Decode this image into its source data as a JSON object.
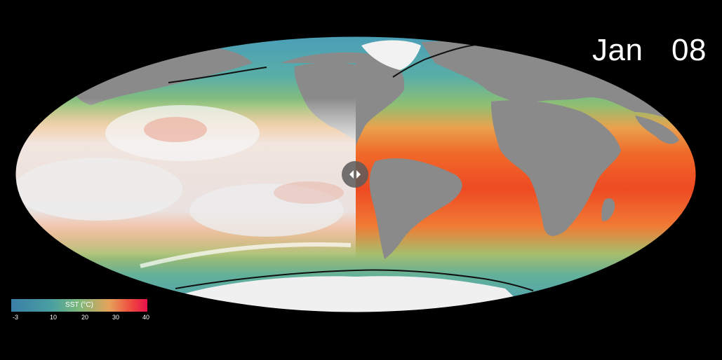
{
  "date": {
    "month": "Jan",
    "day": "08"
  },
  "legend": {
    "title": "SST (°C)",
    "ticks": [
      "-3",
      "10",
      "20",
      "30",
      "40"
    ],
    "tick_values": [
      -3,
      10,
      20,
      30,
      40
    ],
    "range": [
      -3,
      40
    ],
    "colors": [
      "#3a7fa8",
      "#4aa0a0",
      "#7db87a",
      "#e6a25a",
      "#ef4a3f",
      "#e8104a"
    ]
  },
  "map": {
    "projection": "Mollweide",
    "left_panel": "clouds",
    "right_panel": "sea-surface-temperature",
    "colors": {
      "cold_water": "#4a9eb0",
      "mid_water": "#7fc08a",
      "warm_water": "#f06a2a",
      "hot_water": "#ec3a20",
      "land": "#8a8a8a",
      "ice": "#f2f2f2",
      "sea_ice_edge": "#101010"
    }
  },
  "compare_slider": {
    "icon": "left-right-arrows-icon"
  }
}
